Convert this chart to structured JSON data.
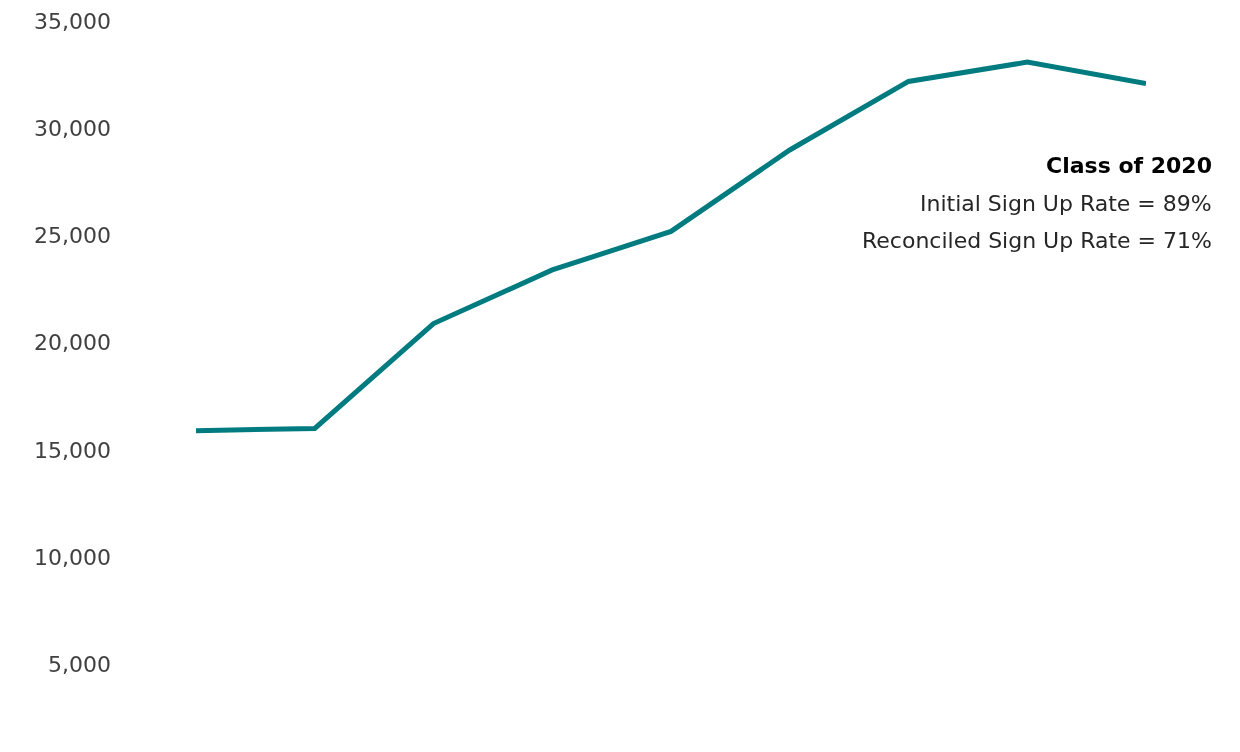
{
  "chart_data": {
    "type": "line",
    "categories": [
      null,
      null,
      null,
      null,
      null,
      null,
      null,
      null,
      null
    ],
    "series": [
      {
        "color": "#007b80",
        "values": [
          15900,
          16000,
          20900,
          23400,
          25200,
          29000,
          32200,
          33100,
          32100
        ]
      }
    ],
    "ylim": [
      900,
      36000
    ],
    "yticks": [
      {
        "value": 5000,
        "label": "5,000"
      },
      {
        "value": 10000,
        "label": "10,000"
      },
      {
        "value": 15000,
        "label": "15,000"
      },
      {
        "value": 20000,
        "label": "20,000"
      },
      {
        "value": 25000,
        "label": "25,000"
      },
      {
        "value": 30000,
        "label": "30,000"
      },
      {
        "value": 35000,
        "label": "35,000"
      }
    ],
    "grid": false,
    "marker": "none",
    "line_style": "solid",
    "tick_labels": "y",
    "annotations": [
      "Class of 2020",
      "Initial Sign Up Rate = 89%",
      "Reconciled Sign Up Rate = 71%"
    ]
  }
}
